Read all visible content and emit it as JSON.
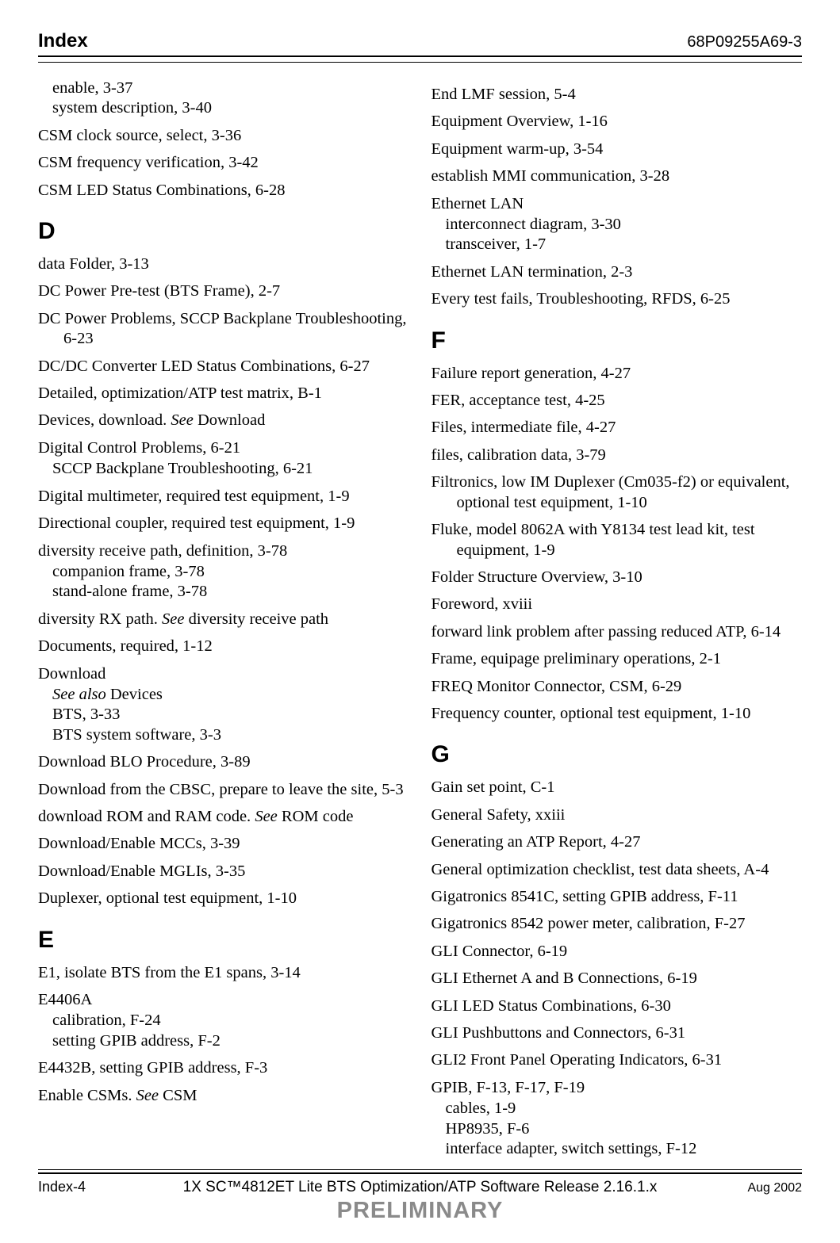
{
  "header": {
    "title": "Index",
    "code": "68P09255A69-3"
  },
  "left": {
    "pre": [
      {
        "subs": [
          "enable, 3-37",
          "system description, 3-40"
        ]
      },
      {
        "text": "CSM clock source, select, 3-36"
      },
      {
        "text": "CSM frequency verification, 3-42"
      },
      {
        "text": "CSM LED Status Combinations, 6-28"
      }
    ],
    "D": {
      "letter": "D",
      "items": [
        {
          "text": "data Folder, 3-13"
        },
        {
          "text": "DC Power Pre-test (BTS Frame), 2-7"
        },
        {
          "text": "DC Power Problems, SCCP Backplane Troubleshooting, 6-23"
        },
        {
          "text": "DC/DC Converter LED Status Combinations, 6-27"
        },
        {
          "text": "Detailed, optimization/ATP test matrix, B-1"
        },
        {
          "html": "Devices, download. <span class=\"italic\">See</span> Download"
        },
        {
          "text": "Digital Control Problems, 6-21",
          "subs": [
            "SCCP Backplane Troubleshooting, 6-21"
          ]
        },
        {
          "text": "Digital multimeter, required test equipment, 1-9"
        },
        {
          "text": "Directional coupler, required test equipment, 1-9"
        },
        {
          "text": "diversity receive path, definition, 3-78",
          "subs": [
            "companion frame, 3-78",
            "stand-alone frame, 3-78"
          ]
        },
        {
          "html": "diversity RX path. <span class=\"italic\">See</span> diversity receive path"
        },
        {
          "text": "Documents, required, 1-12"
        },
        {
          "text": "Download",
          "subs_html": [
            "<span class=\"italic\">See also</span> Devices",
            "BTS, 3-33",
            "BTS system software, 3-3"
          ]
        },
        {
          "text": "Download BLO Procedure, 3-89"
        },
        {
          "text": "Download from the CBSC, prepare to leave the site, 5-3"
        },
        {
          "html": "download ROM and RAM code. <span class=\"italic\">See</span> ROM code"
        },
        {
          "text": "Download/Enable MCCs, 3-39"
        },
        {
          "text": "Download/Enable MGLIs, 3-35"
        },
        {
          "text": "Duplexer, optional test equipment, 1-10"
        }
      ]
    },
    "E": {
      "letter": "E",
      "items": [
        {
          "text": "E1, isolate BTS from the E1 spans, 3-14"
        },
        {
          "text": "E4406A",
          "subs": [
            "calibration, F-24",
            "setting GPIB address, F-2"
          ]
        },
        {
          "text": "E4432B, setting GPIB address, F-3"
        },
        {
          "html": "Enable CSMs. <span class=\"italic\">See</span> CSM"
        }
      ]
    }
  },
  "right": {
    "pre": [
      {
        "text": "End LMF session, 5-4"
      },
      {
        "text": "Equipment Overview, 1-16"
      },
      {
        "text": "Equipment warm-up, 3-54"
      },
      {
        "text": "establish MMI communication, 3-28"
      },
      {
        "text": "Ethernet LAN",
        "subs": [
          "interconnect diagram, 3-30",
          "transceiver, 1-7"
        ]
      },
      {
        "text": "Ethernet LAN termination, 2-3"
      },
      {
        "text": "Every test fails, Troubleshooting, RFDS, 6-25"
      }
    ],
    "F": {
      "letter": "F",
      "items": [
        {
          "text": "Failure report generation, 4-27"
        },
        {
          "text": "FER, acceptance test, 4-25"
        },
        {
          "text": "Files, intermediate file, 4-27"
        },
        {
          "text": "files, calibration data, 3-79"
        },
        {
          "text": "Filtronics, low IM Duplexer (Cm035-f2) or equivalent, optional test equipment, 1-10"
        },
        {
          "text": "Fluke, model 8062A with Y8134 test lead kit, test equipment, 1-9"
        },
        {
          "text": "Folder Structure Overview, 3-10"
        },
        {
          "text": "Foreword, xviii"
        },
        {
          "text": "forward link problem after passing reduced ATP, 6-14"
        },
        {
          "text": "Frame, equipage preliminary operations, 2-1"
        },
        {
          "text": "FREQ Monitor Connector, CSM, 6-29"
        },
        {
          "text": "Frequency counter, optional test equipment, 1-10"
        }
      ]
    },
    "G": {
      "letter": "G",
      "items": [
        {
          "text": "Gain set point, C-1"
        },
        {
          "text": "General Safety, xxiii"
        },
        {
          "text": "Generating an ATP Report, 4-27"
        },
        {
          "text": "General optimization checklist, test data sheets, A-4"
        },
        {
          "text": "Gigatronics 8541C, setting GPIB address, F-11"
        },
        {
          "text": "Gigatronics 8542 power meter, calibration, F-27"
        },
        {
          "text": "GLI Connector, 6-19"
        },
        {
          "text": "GLI Ethernet A and B Connections, 6-19"
        },
        {
          "text": "GLI LED Status Combinations, 6-30"
        },
        {
          "text": "GLI Pushbuttons and Connectors, 6-31"
        },
        {
          "text": "GLI2 Front Panel Operating Indicators, 6-31"
        },
        {
          "text": "GPIB, F-13, F-17, F-19",
          "subs": [
            "cables, 1-9",
            "HP8935, F-6",
            "interface adapter, switch settings, F-12"
          ]
        }
      ]
    }
  },
  "footer": {
    "left": "Index-4",
    "center": "1X SC™4812ET Lite BTS Optimization/ATP Software Release 2.16.1.x",
    "right": "Aug 2002",
    "prelim": "PRELIMINARY"
  }
}
